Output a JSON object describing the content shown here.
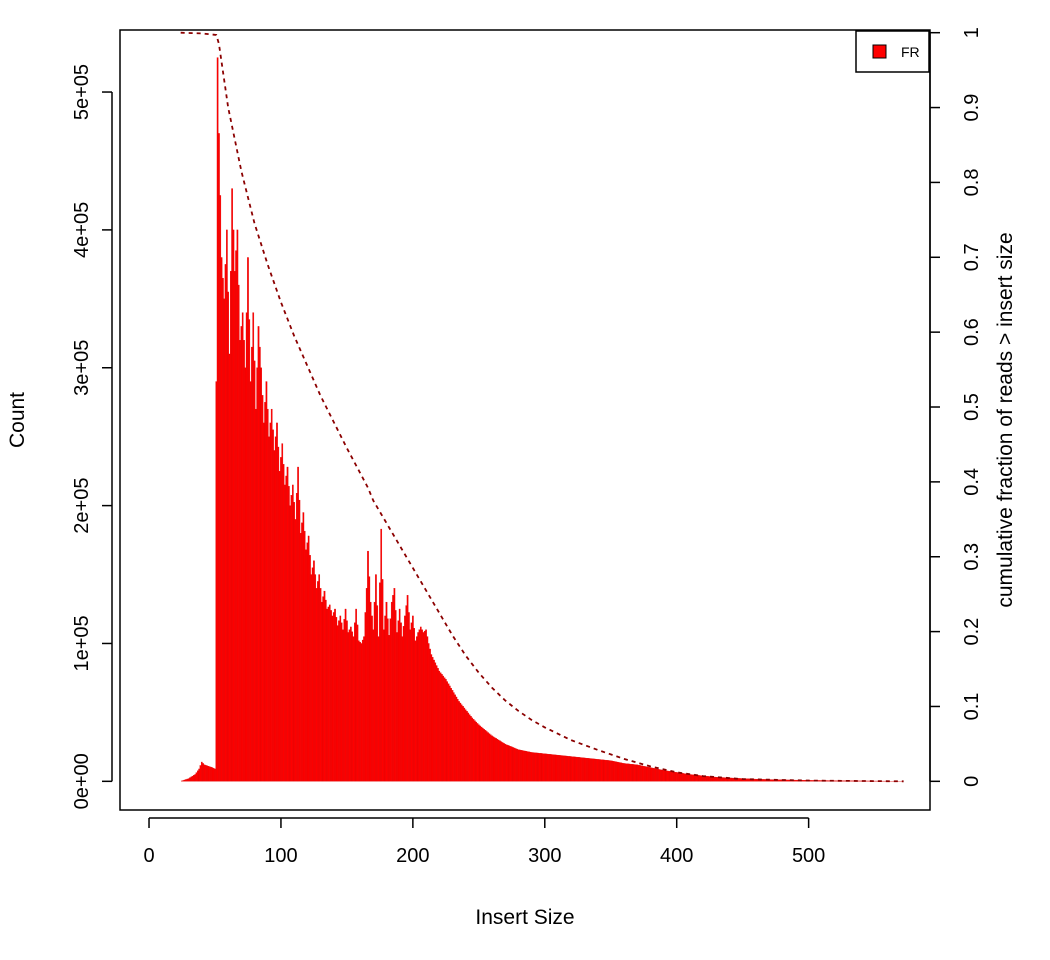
{
  "chart_data": {
    "type": "bar",
    "xlabel": "Insert Size",
    "ylabel": "Count",
    "y2label": "cumulative fraction of reads > insert size",
    "xlim": [
      -22,
      592
    ],
    "ylim": [
      -20800,
      545000
    ],
    "y2lim": [
      -0.0383,
      1.0036
    ],
    "x_ticks": [
      0,
      100,
      200,
      300,
      400,
      500
    ],
    "x_tick_labels": [
      "0",
      "100",
      "200",
      "300",
      "400",
      "500"
    ],
    "y_ticks": [
      0,
      100000,
      200000,
      300000,
      400000,
      500000
    ],
    "y_tick_labels": [
      "0e+00",
      "1e+05",
      "2e+05",
      "3e+05",
      "4e+05",
      "5e+05"
    ],
    "y2_ticks": [
      0,
      0.1,
      0.2,
      0.3,
      0.4,
      0.5,
      0.6,
      0.7,
      0.8,
      0.9,
      1
    ],
    "y2_tick_labels": [
      "0",
      "0.1",
      "0.2",
      "0.3",
      "0.4",
      "0.5",
      "0.6",
      "0.7",
      "0.8",
      "0.9",
      "1"
    ],
    "legend": {
      "position": "top-right",
      "entries": [
        {
          "label": "FR",
          "color": "#ff0000"
        }
      ]
    },
    "grid": false,
    "series": [
      {
        "name": "FR",
        "kind": "histogram",
        "color": "#ff0000",
        "points": [
          [
            24,
            0
          ],
          [
            30,
            2000
          ],
          [
            35,
            5000
          ],
          [
            38,
            9000
          ],
          [
            40,
            14000
          ],
          [
            42,
            12000
          ],
          [
            45,
            11000
          ],
          [
            48,
            10000
          ],
          [
            50,
            9000
          ],
          [
            51,
            290000
          ],
          [
            52,
            525000
          ],
          [
            53,
            470000
          ],
          [
            55,
            380000
          ],
          [
            57,
            350000
          ],
          [
            59,
            400000
          ],
          [
            61,
            310000
          ],
          [
            63,
            430000
          ],
          [
            65,
            370000
          ],
          [
            67,
            400000
          ],
          [
            69,
            320000
          ],
          [
            71,
            340000
          ],
          [
            73,
            300000
          ],
          [
            75,
            380000
          ],
          [
            77,
            290000
          ],
          [
            79,
            340000
          ],
          [
            81,
            270000
          ],
          [
            83,
            330000
          ],
          [
            85,
            300000
          ],
          [
            87,
            260000
          ],
          [
            89,
            290000
          ],
          [
            91,
            250000
          ],
          [
            93,
            270000
          ],
          [
            95,
            240000
          ],
          [
            97,
            260000
          ],
          [
            99,
            225000
          ],
          [
            101,
            245000
          ],
          [
            103,
            215000
          ],
          [
            105,
            228000
          ],
          [
            107,
            200000
          ],
          [
            109,
            215000
          ],
          [
            111,
            190000
          ],
          [
            113,
            228000
          ],
          [
            115,
            180000
          ],
          [
            117,
            195000
          ],
          [
            119,
            168000
          ],
          [
            121,
            178000
          ],
          [
            123,
            150000
          ],
          [
            125,
            160000
          ],
          [
            127,
            140000
          ],
          [
            129,
            150000
          ],
          [
            131,
            130000
          ],
          [
            133,
            138000
          ],
          [
            135,
            125000
          ],
          [
            137,
            128000
          ],
          [
            139,
            120000
          ],
          [
            141,
            125000
          ],
          [
            143,
            113000
          ],
          [
            145,
            120000
          ],
          [
            147,
            110000
          ],
          [
            149,
            125000
          ],
          [
            151,
            108000
          ],
          [
            153,
            112000
          ],
          [
            155,
            105000
          ],
          [
            157,
            125000
          ],
          [
            159,
            102000
          ],
          [
            161,
            100000
          ],
          [
            163,
            105000
          ],
          [
            165,
            140000
          ],
          [
            166,
            167000
          ],
          [
            168,
            130000
          ],
          [
            170,
            110000
          ],
          [
            172,
            150000
          ],
          [
            174,
            105000
          ],
          [
            176,
            183000
          ],
          [
            178,
            110000
          ],
          [
            180,
            130000
          ],
          [
            182,
            106000
          ],
          [
            184,
            130000
          ],
          [
            186,
            140000
          ],
          [
            188,
            108000
          ],
          [
            190,
            125000
          ],
          [
            192,
            105000
          ],
          [
            194,
            120000
          ],
          [
            196,
            135000
          ],
          [
            198,
            110000
          ],
          [
            200,
            120000
          ],
          [
            202,
            102000
          ],
          [
            204,
            108000
          ],
          [
            206,
            112000
          ],
          [
            208,
            108000
          ],
          [
            210,
            110000
          ],
          [
            212,
            100000
          ],
          [
            214,
            92000
          ],
          [
            216,
            88000
          ],
          [
            218,
            84000
          ],
          [
            220,
            80000
          ],
          [
            225,
            74000
          ],
          [
            230,
            66000
          ],
          [
            235,
            58000
          ],
          [
            240,
            52000
          ],
          [
            245,
            46000
          ],
          [
            250,
            41000
          ],
          [
            255,
            37000
          ],
          [
            260,
            33000
          ],
          [
            265,
            30000
          ],
          [
            270,
            27000
          ],
          [
            275,
            25000
          ],
          [
            280,
            23000
          ],
          [
            285,
            22000
          ],
          [
            290,
            21000
          ],
          [
            295,
            20500
          ],
          [
            300,
            20000
          ],
          [
            310,
            19000
          ],
          [
            320,
            18000
          ],
          [
            330,
            17000
          ],
          [
            340,
            16000
          ],
          [
            350,
            15000
          ],
          [
            360,
            13000
          ],
          [
            370,
            12000
          ],
          [
            380,
            10000
          ],
          [
            390,
            8000
          ],
          [
            400,
            6500
          ],
          [
            410,
            5000
          ],
          [
            420,
            4000
          ],
          [
            430,
            3000
          ],
          [
            440,
            2500
          ],
          [
            450,
            2000
          ],
          [
            460,
            1600
          ],
          [
            470,
            1300
          ],
          [
            480,
            1100
          ],
          [
            490,
            900
          ],
          [
            500,
            700
          ],
          [
            520,
            500
          ],
          [
            540,
            300
          ],
          [
            560,
            150
          ],
          [
            572,
            0
          ]
        ]
      },
      {
        "name": "cumulative",
        "kind": "line",
        "axis": "right",
        "color": "#8b0000",
        "style": "dashed",
        "points": [
          [
            24,
            1
          ],
          [
            40,
            0.999
          ],
          [
            51,
            0.997
          ],
          [
            53,
            0.985
          ],
          [
            60,
            0.9
          ],
          [
            70,
            0.815
          ],
          [
            80,
            0.745
          ],
          [
            90,
            0.69
          ],
          [
            100,
            0.64
          ],
          [
            110,
            0.595
          ],
          [
            120,
            0.555
          ],
          [
            130,
            0.515
          ],
          [
            140,
            0.48
          ],
          [
            150,
            0.445
          ],
          [
            160,
            0.412
          ],
          [
            166,
            0.392
          ],
          [
            170,
            0.375
          ],
          [
            180,
            0.345
          ],
          [
            190,
            0.315
          ],
          [
            200,
            0.285
          ],
          [
            210,
            0.255
          ],
          [
            220,
            0.225
          ],
          [
            230,
            0.195
          ],
          [
            240,
            0.168
          ],
          [
            250,
            0.145
          ],
          [
            260,
            0.125
          ],
          [
            270,
            0.108
          ],
          [
            280,
            0.094
          ],
          [
            290,
            0.082
          ],
          [
            300,
            0.072
          ],
          [
            320,
            0.055
          ],
          [
            340,
            0.042
          ],
          [
            360,
            0.03
          ],
          [
            380,
            0.02
          ],
          [
            400,
            0.012
          ],
          [
            420,
            0.007
          ],
          [
            450,
            0.003
          ],
          [
            500,
            0.001
          ],
          [
            572,
            0
          ]
        ]
      }
    ]
  }
}
